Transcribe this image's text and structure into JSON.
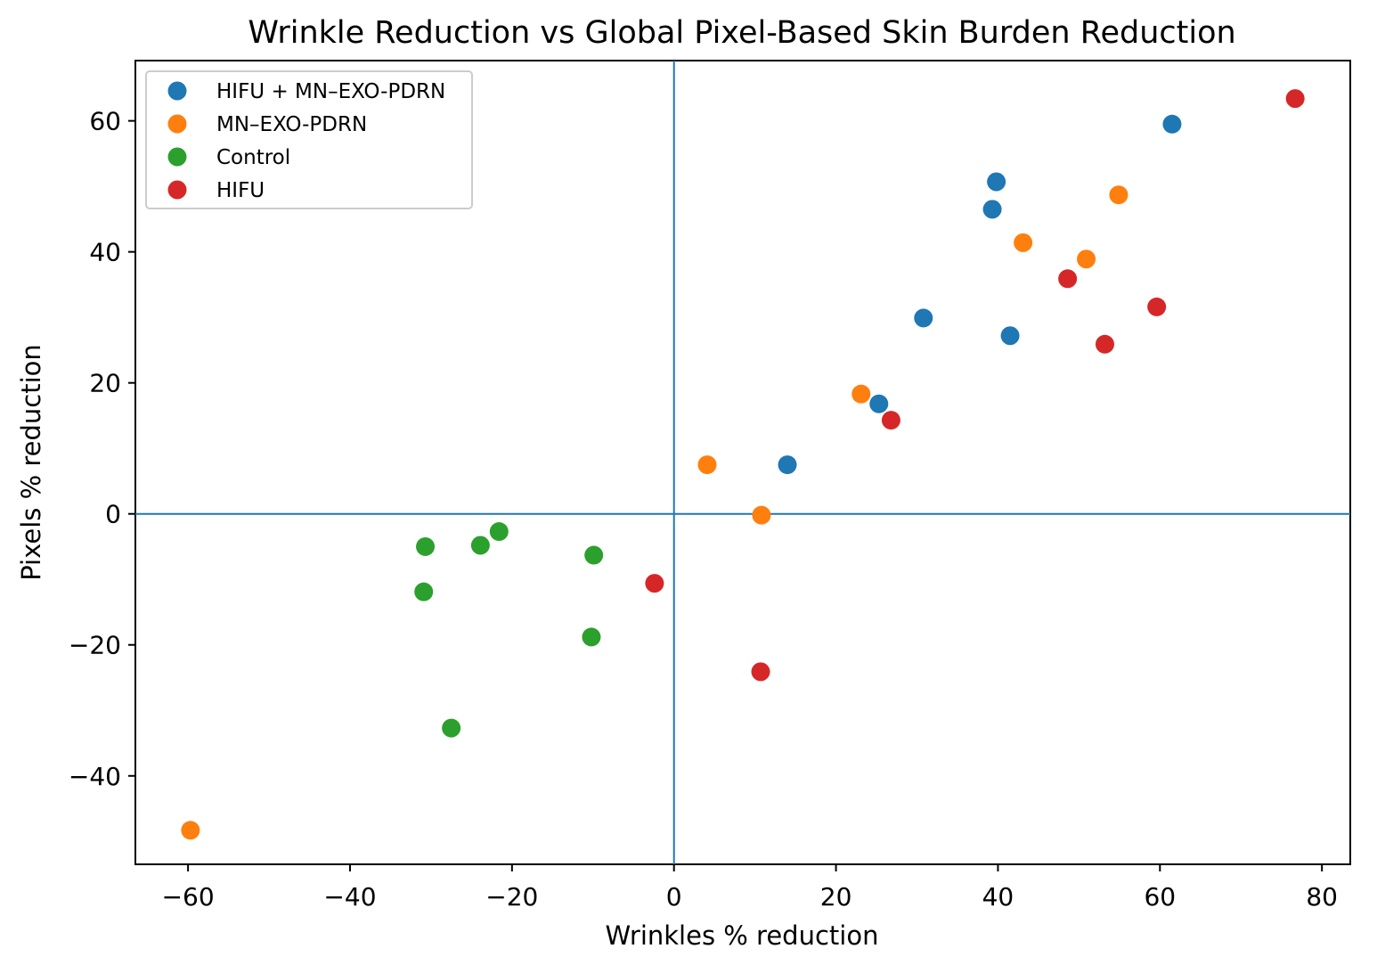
{
  "chart_data": {
    "type": "scatter",
    "title": "Wrinkle Reduction vs Global Pixel-Based Skin Burden Reduction",
    "xlabel": "Wrinkles % reduction",
    "ylabel": "Pixels % reduction",
    "xlim": [
      -66.5,
      83.5
    ],
    "ylim": [
      -53.5,
      69.2
    ],
    "xticks": [
      -60,
      -40,
      -20,
      0,
      20,
      40,
      60,
      80
    ],
    "yticks": [
      -40,
      -20,
      0,
      20,
      40,
      60
    ],
    "xtick_labels": [
      "−60",
      "−40",
      "−20",
      "0",
      "20",
      "40",
      "60",
      "80"
    ],
    "ytick_labels": [
      "−40",
      "−20",
      "0",
      "20",
      "40",
      "60"
    ],
    "reference_lines": {
      "x": 0,
      "y": 0,
      "color": "#1f77b4"
    },
    "grid": false,
    "legend_position": "upper-left",
    "series": [
      {
        "name": "HIFU + MN–EXO-PDRN",
        "color": "#1f77b4",
        "points": [
          {
            "x": 61.5,
            "y": 59.5
          },
          {
            "x": 39.8,
            "y": 50.7
          },
          {
            "x": 39.3,
            "y": 46.5
          },
          {
            "x": 30.8,
            "y": 29.9
          },
          {
            "x": 41.5,
            "y": 27.2
          },
          {
            "x": 25.3,
            "y": 16.8
          },
          {
            "x": 14.0,
            "y": 7.5
          }
        ]
      },
      {
        "name": "MN–EXO-PDRN",
        "color": "#ff7f0e",
        "points": [
          {
            "x": 54.9,
            "y": 48.7
          },
          {
            "x": 43.1,
            "y": 41.4
          },
          {
            "x": 50.9,
            "y": 38.9
          },
          {
            "x": 23.1,
            "y": 18.3
          },
          {
            "x": 4.1,
            "y": 7.5
          },
          {
            "x": 10.8,
            "y": -0.2
          },
          {
            "x": -59.7,
            "y": -48.3
          }
        ]
      },
      {
        "name": "Control",
        "color": "#2ca02c",
        "points": [
          {
            "x": -21.6,
            "y": -2.7
          },
          {
            "x": -23.9,
            "y": -4.8
          },
          {
            "x": -30.7,
            "y": -5.0
          },
          {
            "x": -9.9,
            "y": -6.3
          },
          {
            "x": -30.9,
            "y": -11.9
          },
          {
            "x": -10.2,
            "y": -18.8
          },
          {
            "x": -27.5,
            "y": -32.7
          }
        ]
      },
      {
        "name": "HIFU",
        "color": "#d62728",
        "points": [
          {
            "x": 76.7,
            "y": 63.4
          },
          {
            "x": 48.6,
            "y": 35.9
          },
          {
            "x": 59.6,
            "y": 31.6
          },
          {
            "x": 53.2,
            "y": 25.9
          },
          {
            "x": 26.8,
            "y": 14.3
          },
          {
            "x": -2.4,
            "y": -10.6
          },
          {
            "x": 10.7,
            "y": -24.1
          }
        ]
      }
    ]
  }
}
